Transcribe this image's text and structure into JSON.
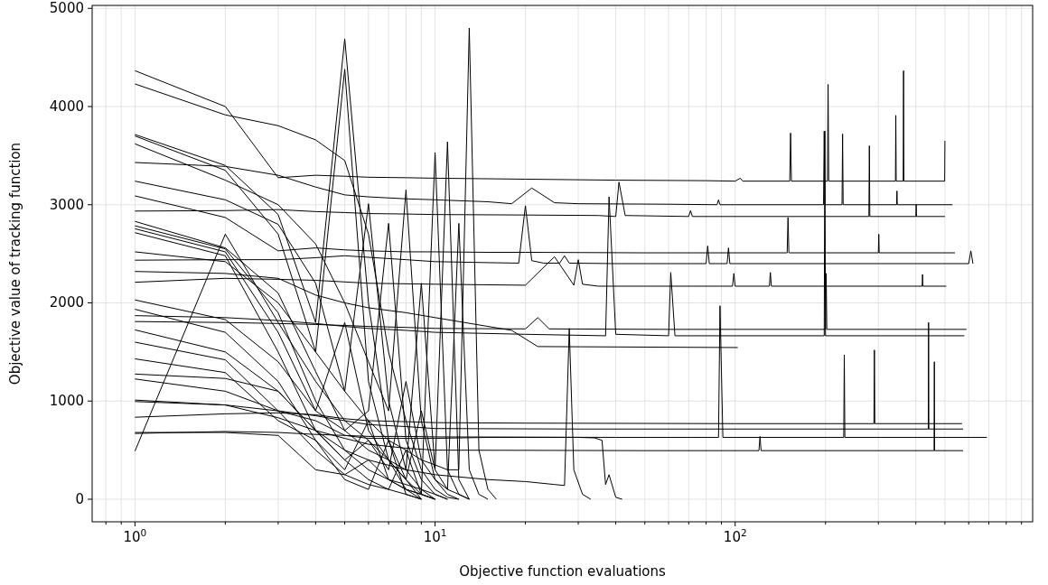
{
  "chart_data": {
    "type": "line",
    "xlabel": "Objective function evaluations",
    "ylabel": "Objective value of tracking function",
    "log": "x",
    "grid": true,
    "xlim": [
      0.72,
      980
    ],
    "ylim": [
      -230,
      5030
    ],
    "xticks": [
      {
        "value": 0.8,
        "label": null
      },
      {
        "value": 0.9,
        "label": null
      },
      {
        "value": 1,
        "label": "10$^{0}$"
      },
      {
        "value": 2,
        "label": null
      },
      {
        "value": 3,
        "label": null
      },
      {
        "value": 4,
        "label": null
      },
      {
        "value": 5,
        "label": null
      },
      {
        "value": 6,
        "label": null
      },
      {
        "value": 7,
        "label": null
      },
      {
        "value": 8,
        "label": null
      },
      {
        "value": 9,
        "label": null
      },
      {
        "value": 10,
        "label": "10$^{1}$"
      },
      {
        "value": 20,
        "label": null
      },
      {
        "value": 30,
        "label": null
      },
      {
        "value": 40,
        "label": null
      },
      {
        "value": 50,
        "label": null
      },
      {
        "value": 60,
        "label": null
      },
      {
        "value": 70,
        "label": null
      },
      {
        "value": 80,
        "label": null
      },
      {
        "value": 90,
        "label": null
      },
      {
        "value": 100,
        "label": "10$^{2}$"
      },
      {
        "value": 200,
        "label": null
      },
      {
        "value": 300,
        "label": null
      },
      {
        "value": 400,
        "label": null
      },
      {
        "value": 500,
        "label": null
      },
      {
        "value": 600,
        "label": null
      },
      {
        "value": 700,
        "label": null
      },
      {
        "value": 800,
        "label": null
      },
      {
        "value": 900,
        "label": null
      }
    ],
    "yticks": [
      0,
      1000,
      2000,
      3000,
      4000,
      5000
    ],
    "series": [
      {
        "color": "#000000",
        "x": [
          1,
          2,
          3,
          4,
          5,
          6,
          8,
          10,
          20,
          40,
          80,
          100,
          104,
          106,
          152,
          153,
          154,
          203,
          204,
          205,
          342,
          343,
          344,
          363,
          364,
          365,
          499,
          500
        ],
        "values": [
          4365,
          4000,
          3275,
          3300,
          3290,
          3280,
          3275,
          3270,
          3260,
          3250,
          3245,
          3240,
          3270,
          3240,
          3240,
          3730,
          3240,
          3240,
          4225,
          3240,
          3240,
          3910,
          3240,
          3240,
          4365,
          3240,
          3240,
          3650
        ]
      },
      {
        "color": "#000000",
        "x": [
          1,
          2,
          3,
          4,
          5,
          6,
          8,
          10,
          15,
          18,
          21,
          25,
          30,
          60,
          87,
          88,
          89,
          100,
          197,
          198,
          199,
          227,
          228,
          229,
          345,
          346,
          347,
          530
        ],
        "values": [
          3430,
          3390,
          3300,
          3180,
          3100,
          3080,
          3060,
          3050,
          3030,
          3010,
          3170,
          3020,
          3010,
          3005,
          3000,
          3050,
          3000,
          3000,
          3000,
          3750,
          3000,
          3000,
          3720,
          3000,
          3000,
          3140,
          3000,
          3000
        ]
      },
      {
        "color": "#000000",
        "x": [
          1,
          2,
          3,
          4,
          5,
          6,
          8,
          10,
          20,
          35,
          40,
          41,
          43,
          70,
          71,
          72,
          279,
          280,
          281,
          400,
          401,
          402,
          500
        ],
        "values": [
          2935,
          2940,
          2950,
          2930,
          2920,
          2910,
          2905,
          2900,
          2895,
          2890,
          2880,
          3230,
          2890,
          2880,
          2940,
          2880,
          2880,
          3600,
          2880,
          2880,
          3000,
          2880,
          2880
        ]
      },
      {
        "color": "#000000",
        "x": [
          1,
          2,
          3,
          4,
          5,
          6,
          8,
          10,
          15,
          20,
          50,
          148,
          149,
          150,
          151,
          152,
          300,
          301,
          302,
          540
        ],
        "values": [
          3090,
          2870,
          2530,
          2560,
          2540,
          2530,
          2520,
          2520,
          2515,
          2515,
          2510,
          2510,
          2510,
          2870,
          2510,
          2510,
          2510,
          2700,
          2510,
          2510
        ]
      },
      {
        "color": "#000000",
        "x": [
          1,
          2,
          3,
          4,
          5,
          8,
          10,
          15,
          19,
          20,
          21,
          23,
          26,
          27,
          28,
          40,
          80,
          81,
          82,
          94,
          95,
          96,
          600,
          610,
          620
        ],
        "values": [
          2435,
          2440,
          2440,
          2460,
          2480,
          2440,
          2420,
          2410,
          2405,
          2990,
          2430,
          2405,
          2405,
          2480,
          2405,
          2400,
          2400,
          2580,
          2400,
          2400,
          2560,
          2400,
          2400,
          2530,
          2400
        ]
      },
      {
        "color": "#000000",
        "x": [
          1,
          2,
          3,
          4,
          6,
          10,
          20,
          25,
          29,
          30,
          31,
          35,
          50,
          98,
          99,
          100,
          130,
          131,
          132,
          420,
          421,
          422,
          505
        ],
        "values": [
          2210,
          2250,
          2240,
          2230,
          2200,
          2190,
          2180,
          2470,
          2180,
          2440,
          2190,
          2170,
          2170,
          2170,
          2300,
          2170,
          2170,
          2310,
          2170,
          2170,
          2290,
          2170,
          2170
        ]
      },
      {
        "color": "#000000",
        "x": [
          1,
          2,
          3,
          4,
          5,
          6,
          8,
          10,
          20,
          22,
          24,
          60,
          200,
          201,
          202,
          590
        ],
        "values": [
          1810,
          1800,
          1790,
          1780,
          1770,
          1760,
          1750,
          1740,
          1735,
          1850,
          1735,
          1730,
          1730,
          2300,
          1730,
          1730
        ]
      },
      {
        "color": "#000000",
        "x": [
          1,
          2,
          3,
          4,
          5,
          6,
          8,
          10,
          20,
          37,
          38,
          40,
          60,
          61,
          63,
          198,
          199,
          200,
          580
        ],
        "values": [
          1870,
          1850,
          1820,
          1790,
          1760,
          1740,
          1720,
          1700,
          1680,
          1665,
          3080,
          1680,
          1665,
          2310,
          1665,
          1665,
          3750,
          1665,
          1665
        ]
      },
      {
        "color": "#000000",
        "x": [
          1,
          2,
          3,
          4,
          5,
          6,
          8,
          10,
          18,
          22,
          102
        ],
        "values": [
          2320,
          2300,
          2250,
          2080,
          2000,
          1950,
          1900,
          1850,
          1720,
          1555,
          1545
        ]
      },
      {
        "color": "#000000",
        "x": [
          1,
          2,
          3,
          4,
          5,
          6,
          8,
          10,
          20,
          100,
          290,
          291,
          292,
          570
        ],
        "values": [
          835,
          870,
          880,
          860,
          820,
          800,
          790,
          780,
          775,
          770,
          770,
          1520,
          770,
          770
        ]
      },
      {
        "color": "#000000",
        "x": [
          1,
          2,
          3,
          4,
          5,
          6,
          8,
          10,
          30,
          300,
          440,
          441,
          442,
          575
        ],
        "values": [
          995,
          960,
          900,
          850,
          800,
          760,
          740,
          720,
          715,
          715,
          715,
          1800,
          715,
          715
        ]
      },
      {
        "color": "#000000",
        "x": [
          1,
          2,
          3,
          4,
          5,
          6,
          8,
          10,
          40,
          88,
          89,
          91,
          230,
          231,
          232,
          690
        ],
        "values": [
          670,
          690,
          680,
          660,
          650,
          640,
          640,
          635,
          630,
          630,
          1970,
          630,
          630,
          1470,
          630,
          630
        ]
      },
      {
        "color": "#000000",
        "x": [
          1,
          2,
          3,
          4,
          5,
          6,
          8,
          10,
          50,
          120,
          121,
          122,
          460,
          461,
          462,
          575
        ],
        "values": [
          1010,
          960,
          830,
          700,
          620,
          560,
          520,
          500,
          495,
          495,
          640,
          495,
          495,
          1400,
          495,
          495
        ]
      },
      {
        "color": "#000000",
        "x": [
          1,
          2,
          3,
          4,
          5,
          6,
          7,
          8,
          9,
          10,
          11,
          12
        ],
        "values": [
          4230,
          3915,
          3805,
          3660,
          3450,
          2700,
          1500,
          800,
          300,
          100,
          20,
          0
        ]
      },
      {
        "color": "#000000",
        "x": [
          1,
          2,
          3,
          4,
          5,
          6,
          7,
          8,
          9,
          10
        ],
        "values": [
          3715,
          3400,
          2900,
          1800,
          4690,
          2000,
          600,
          200,
          50,
          0
        ]
      },
      {
        "color": "#000000",
        "x": [
          1,
          2,
          3,
          4,
          5,
          6,
          7,
          8,
          9
        ],
        "values": [
          3700,
          3350,
          2700,
          1500,
          4380,
          1200,
          400,
          100,
          0
        ]
      },
      {
        "color": "#000000",
        "x": [
          1,
          2,
          3,
          4,
          5,
          6,
          7,
          8,
          9,
          10,
          11,
          12
        ],
        "values": [
          3620,
          3250,
          3000,
          2600,
          2000,
          1400,
          900,
          3150,
          800,
          200,
          50,
          0
        ]
      },
      {
        "color": "#000000",
        "x": [
          1,
          2,
          3,
          4,
          5,
          6,
          7,
          8,
          9,
          10
        ],
        "values": [
          3240,
          3050,
          2800,
          2200,
          1100,
          3010,
          1000,
          300,
          100,
          0
        ]
      },
      {
        "color": "#000000",
        "x": [
          1,
          2,
          3,
          4,
          5,
          6,
          7,
          8,
          9,
          10,
          11
        ],
        "values": [
          2830,
          2560,
          2100,
          1300,
          700,
          900,
          2810,
          600,
          200,
          50,
          0
        ]
      },
      {
        "color": "#000000",
        "x": [
          1,
          2,
          3,
          4,
          5,
          6,
          7,
          8,
          9,
          10,
          11,
          12,
          13
        ],
        "values": [
          2785,
          2550,
          1900,
          1000,
          500,
          300,
          200,
          100,
          50,
          3530,
          300,
          50,
          0
        ]
      },
      {
        "color": "#000000",
        "x": [
          1,
          2,
          3,
          4,
          5,
          6,
          7,
          8,
          9,
          10,
          11,
          12,
          13
        ],
        "values": [
          2755,
          2520,
          1700,
          900,
          1800,
          700,
          400,
          200,
          900,
          300,
          3640,
          200,
          0
        ]
      },
      {
        "color": "#000000",
        "x": [
          1,
          2,
          3,
          4,
          5,
          6,
          7,
          8,
          9,
          10,
          11,
          12,
          13,
          14,
          15
        ],
        "values": [
          2715,
          2480,
          1500,
          700,
          400,
          600,
          300,
          1200,
          400,
          200,
          100,
          2810,
          300,
          50,
          0
        ]
      },
      {
        "color": "#000000",
        "x": [
          1,
          2,
          3,
          4,
          5,
          6,
          7,
          8,
          9,
          10,
          11,
          12,
          13,
          14,
          15,
          16
        ],
        "values": [
          2520,
          2420,
          2000,
          1500,
          1100,
          800,
          600,
          500,
          400,
          350,
          300,
          300,
          4800,
          500,
          100,
          0
        ]
      },
      {
        "color": "#000000",
        "x": [
          1,
          2,
          3,
          4,
          5,
          6,
          7,
          8,
          9,
          10,
          11,
          12,
          13
        ],
        "values": [
          2030,
          1830,
          1400,
          900,
          700,
          500,
          400,
          300,
          2200,
          300,
          100,
          50,
          0
        ]
      },
      {
        "color": "#000000",
        "x": [
          1,
          2,
          3,
          4,
          5,
          6,
          7,
          8,
          9,
          10
        ],
        "values": [
          1935,
          1700,
          1200,
          600,
          300,
          800,
          200,
          100,
          50,
          0
        ]
      },
      {
        "color": "#000000",
        "x": [
          1,
          2,
          3,
          4,
          5,
          6,
          7,
          8,
          9
        ],
        "values": [
          1725,
          1500,
          1100,
          700,
          400,
          200,
          100,
          50,
          0
        ]
      },
      {
        "color": "#000000",
        "x": [
          1,
          2,
          3,
          4,
          5,
          6,
          7,
          8,
          9,
          10
        ],
        "values": [
          1600,
          1420,
          900,
          500,
          250,
          150,
          100,
          500,
          50,
          0
        ]
      },
      {
        "color": "#000000",
        "x": [
          1,
          2,
          3,
          4,
          5,
          6,
          7,
          8,
          9
        ],
        "values": [
          1430,
          1290,
          800,
          600,
          200,
          100,
          600,
          50,
          0
        ]
      },
      {
        "color": "#000000",
        "x": [
          1,
          2,
          3,
          4,
          5,
          6,
          8,
          10,
          15,
          20,
          25,
          27,
          28,
          29,
          31,
          33
        ],
        "values": [
          1275,
          1230,
          1100,
          700,
          500,
          400,
          300,
          250,
          200,
          180,
          150,
          140,
          1740,
          300,
          50,
          0
        ]
      },
      {
        "color": "#000000",
        "x": [
          1,
          2,
          3,
          4,
          5,
          6,
          8,
          10,
          15,
          20,
          30,
          34,
          36,
          37,
          38,
          40,
          42
        ],
        "values": [
          1225,
          1100,
          900,
          800,
          650,
          620,
          620,
          620,
          630,
          630,
          630,
          625,
          600,
          150,
          250,
          20,
          0
        ]
      },
      {
        "color": "#000000",
        "x": [
          1,
          2,
          3,
          4,
          5,
          6,
          7,
          8,
          9,
          10,
          11
        ],
        "values": [
          680,
          680,
          650,
          300,
          250,
          400,
          200,
          150,
          100,
          50,
          0
        ]
      },
      {
        "color": "#000000",
        "x": [
          1,
          2,
          3,
          4,
          5,
          6,
          7,
          8,
          9
        ],
        "values": [
          490,
          2700,
          1800,
          1200,
          800,
          600,
          400,
          200,
          0
        ]
      }
    ]
  }
}
